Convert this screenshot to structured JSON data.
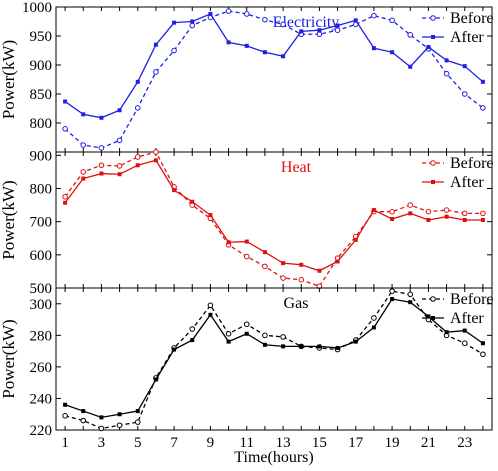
{
  "chart_data": [
    {
      "type": "line",
      "title": "Electricity",
      "title_color": "#1f1fe6",
      "ylabel": "Power(kW)",
      "ylim": [
        750,
        1000
      ],
      "yticks": [
        800,
        850,
        900,
        950,
        1000
      ],
      "x": [
        1,
        2,
        3,
        4,
        5,
        6,
        7,
        8,
        9,
        10,
        11,
        12,
        13,
        14,
        15,
        16,
        17,
        18,
        19,
        20,
        21,
        22,
        23,
        24
      ],
      "legend": "top-right",
      "series": [
        {
          "name": "Before",
          "style": "dashed",
          "marker": "open-circle",
          "color": "#1f1fe6",
          "values": [
            790,
            762,
            757,
            770,
            826,
            888,
            925,
            968,
            982,
            993,
            988,
            978,
            970,
            953,
            953,
            960,
            970,
            985,
            977,
            952,
            928,
            885,
            850,
            826
          ]
        },
        {
          "name": "After",
          "style": "solid",
          "marker": "filled-square",
          "color": "#1f1fe6",
          "values": [
            837,
            815,
            809,
            822,
            871,
            935,
            973,
            975,
            988,
            939,
            933,
            922,
            915,
            958,
            960,
            968,
            977,
            929,
            922,
            897,
            931,
            908,
            898,
            871
          ]
        }
      ]
    },
    {
      "type": "line",
      "title": "Heat",
      "title_color": "#e01010",
      "ylabel": "Power(kW)",
      "ylim": [
        500,
        910
      ],
      "yticks": [
        500,
        600,
        700,
        800,
        900
      ],
      "x": [
        1,
        2,
        3,
        4,
        5,
        6,
        7,
        8,
        9,
        10,
        11,
        12,
        13,
        14,
        15,
        16,
        17,
        18,
        19,
        20,
        21,
        22,
        23,
        24
      ],
      "legend": "top-right",
      "series": [
        {
          "name": "Before",
          "style": "dashed",
          "marker": "open-circle",
          "color": "#e01010",
          "values": [
            775,
            850,
            870,
            868,
            895,
            910,
            805,
            750,
            710,
            630,
            595,
            565,
            530,
            525,
            505,
            590,
            655,
            730,
            730,
            750,
            730,
            735,
            725,
            725
          ]
        },
        {
          "name": "After",
          "style": "solid",
          "marker": "filled-square",
          "color": "#e01010",
          "values": [
            757,
            830,
            845,
            843,
            870,
            885,
            795,
            760,
            720,
            638,
            640,
            608,
            575,
            570,
            552,
            580,
            645,
            735,
            708,
            725,
            705,
            715,
            705,
            705
          ]
        }
      ]
    },
    {
      "type": "line",
      "title": "Gas",
      "title_color": "#000000",
      "ylabel": "Power(kW)",
      "ylim": [
        220,
        310
      ],
      "yticks": [
        220,
        240,
        260,
        280,
        300
      ],
      "x": [
        1,
        2,
        3,
        4,
        5,
        6,
        7,
        8,
        9,
        10,
        11,
        12,
        13,
        14,
        15,
        16,
        17,
        18,
        19,
        20,
        21,
        22,
        23,
        24
      ],
      "xlabel": "Time(hours)",
      "xticks": [
        1,
        3,
        5,
        7,
        9,
        11,
        13,
        15,
        17,
        19,
        21,
        23
      ],
      "legend": "top-right",
      "series": [
        {
          "name": "Before",
          "style": "dashed",
          "marker": "open-circle",
          "color": "#000000",
          "values": [
            229,
            226,
            221,
            223,
            225,
            253,
            272,
            284,
            299,
            281,
            287,
            280,
            279,
            273,
            272,
            271,
            277,
            291,
            308,
            306,
            290,
            280,
            275,
            268
          ]
        },
        {
          "name": "After",
          "style": "solid",
          "marker": "filled-square",
          "color": "#000000",
          "values": [
            236,
            232,
            228,
            230,
            232,
            252,
            271,
            277,
            293,
            276,
            281,
            274,
            273,
            273,
            273,
            272,
            276,
            285,
            303,
            301,
            292,
            282,
            283,
            275
          ]
        }
      ]
    }
  ]
}
